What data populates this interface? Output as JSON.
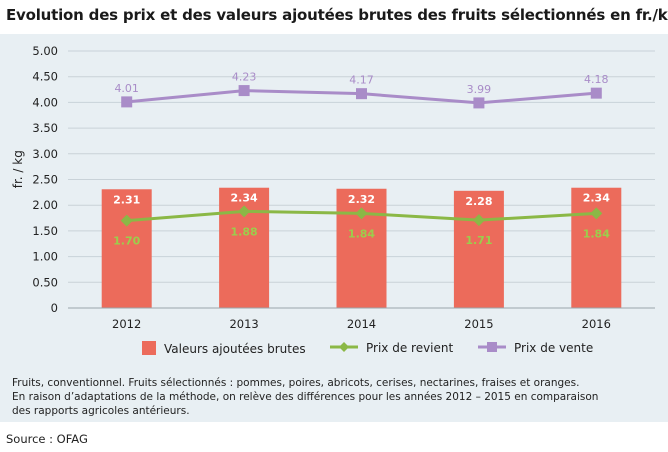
{
  "title": "Evolution des prix et des valeurs ajoutées brutes des fruits sélectionnés en fr./kg",
  "notes": [
    "Fruits, conventionnel. Fruits sélectionnés : pommes, poires, abricots, cerises, nectarines, fraises et oranges.",
    "En raison d’adaptations de la méthode, on relève des différences pour les années  2012 – 2015 en comparaison",
    "des rapports agricoles antérieurs."
  ],
  "source": "Source : OFAG",
  "chart_data": {
    "type": "bar",
    "categories": [
      "2012",
      "2013",
      "2014",
      "2015",
      "2016"
    ],
    "ylabel": "fr. / kg",
    "xlabel": "",
    "ylim": [
      0,
      5
    ],
    "yticks": [
      "0",
      "0.50",
      "1.00",
      "1.50",
      "2.00",
      "2.50",
      "3.00",
      "3.50",
      "4.00",
      "4.50",
      "5.00"
    ],
    "grid": true,
    "legend_position": "bottom",
    "series": [
      {
        "name": "Valeurs ajoutées brutes",
        "kind": "bar",
        "color": "#ec6b5b",
        "values": [
          2.31,
          2.34,
          2.32,
          2.28,
          2.34
        ],
        "labels": [
          "2.31",
          "2.34",
          "2.32",
          "2.28",
          "2.34"
        ]
      },
      {
        "name": "Prix de revient",
        "kind": "line",
        "color": "#8bb846",
        "values": [
          1.7,
          1.88,
          1.84,
          1.71,
          1.84
        ],
        "labels": [
          "1.70",
          "1.88",
          "1.84",
          "1.71",
          "1.84"
        ]
      },
      {
        "name": "Prix de vente",
        "kind": "line",
        "color": "#a98cc8",
        "values": [
          4.01,
          4.23,
          4.17,
          3.99,
          4.18
        ],
        "labels": [
          "4.01",
          "4.23",
          "4.17",
          "3.99",
          "4.18"
        ]
      }
    ]
  }
}
